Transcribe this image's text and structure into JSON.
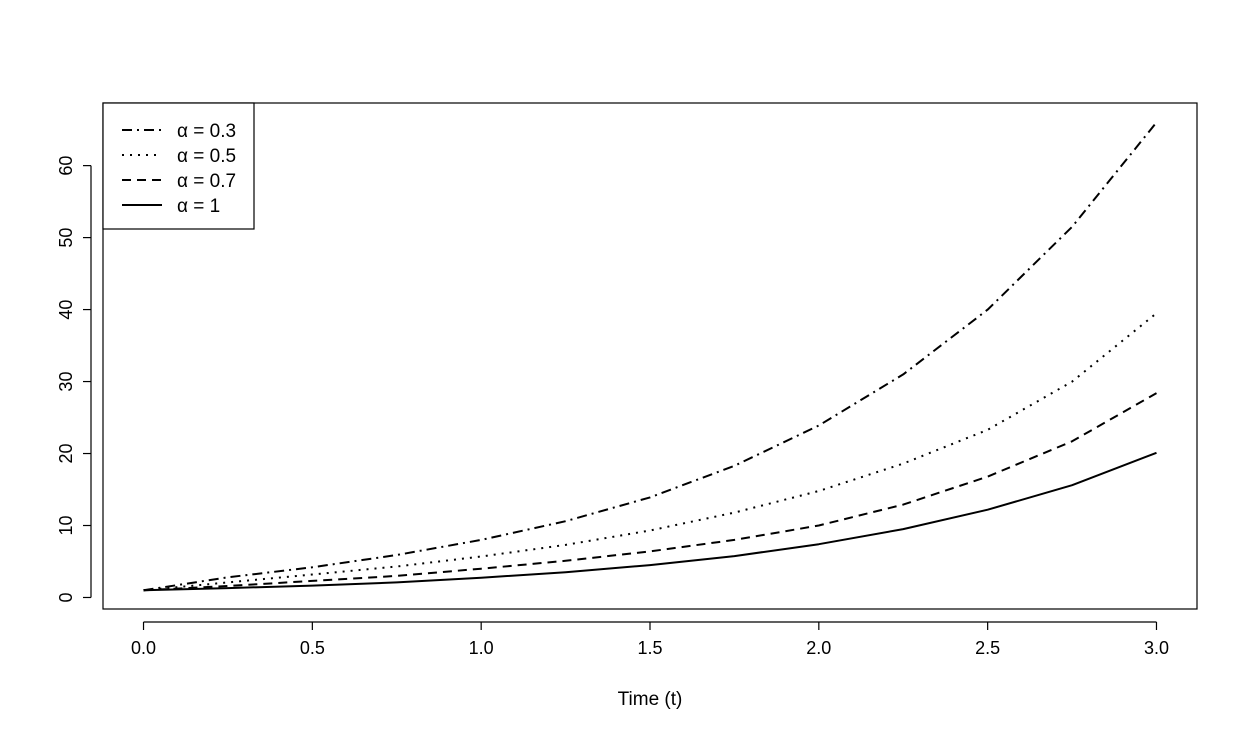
{
  "chart_data": {
    "type": "line",
    "title": "",
    "xlabel": "Time (t)",
    "ylabel": "",
    "xlim": [
      -0.12,
      3.12
    ],
    "ylim": [
      -1.6,
      68.7
    ],
    "x_ticks": [
      "0.0",
      "0.5",
      "1.0",
      "1.5",
      "2.0",
      "2.5",
      "3.0"
    ],
    "x_tick_values": [
      0,
      0.5,
      1,
      1.5,
      2,
      2.5,
      3
    ],
    "y_ticks": [
      "0",
      "10",
      "20",
      "30",
      "40",
      "50",
      "60"
    ],
    "y_tick_values": [
      0,
      10,
      20,
      30,
      40,
      50,
      60
    ],
    "grid": false,
    "legend_position": "top-left",
    "x": [
      0,
      0.25,
      0.5,
      0.75,
      1.0,
      1.25,
      1.5,
      1.75,
      2.0,
      2.25,
      2.5,
      2.75,
      3.0
    ],
    "series": [
      {
        "name": "α = 0.3",
        "line_style": "dash-dot",
        "values": [
          1.0,
          2.8,
          4.2,
          5.9,
          8.0,
          10.6,
          13.9,
          18.3,
          23.9,
          31.0,
          40.0,
          51.5,
          66.0
        ]
      },
      {
        "name": "α = 0.5",
        "line_style": "dotted",
        "values": [
          1.0,
          2.1,
          3.2,
          4.3,
          5.7,
          7.3,
          9.3,
          11.8,
          14.8,
          18.6,
          23.3,
          30.0,
          39.5
        ]
      },
      {
        "name": "α = 0.7",
        "line_style": "dashed",
        "values": [
          1.0,
          1.6,
          2.3,
          3.0,
          4.0,
          5.1,
          6.4,
          8.0,
          10.0,
          12.9,
          16.8,
          21.7,
          28.4
        ]
      },
      {
        "name": "α = 1",
        "line_style": "solid",
        "values": [
          1.0,
          1.3,
          1.65,
          2.1,
          2.75,
          3.5,
          4.5,
          5.75,
          7.4,
          9.5,
          12.2,
          15.6,
          20.1
        ]
      }
    ],
    "colors": {
      "line": "#000000",
      "background": "#ffffff"
    }
  }
}
